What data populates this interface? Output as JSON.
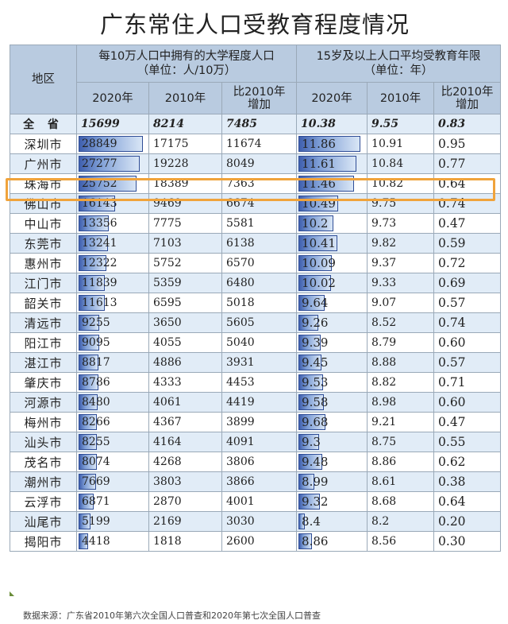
{
  "title": "广东常住人口受教育程度情况",
  "header": {
    "region": "地区",
    "group1_line1": "每10万人口中拥有的大学程度人口",
    "group1_line2": "（单位：人/10万）",
    "group2_line1": "15岁及以上人口平均受教育年限",
    "group2_line2": "（单位：年）",
    "col_2020": "2020年",
    "col_2010": "2010年",
    "col_inc_line1": "比2010年",
    "col_inc_line2": "增加"
  },
  "source": "数据来源：广东省2010年第六次全国人口普查和2020年第七次全国人口普查",
  "highlight_region": "珠海市",
  "colors": {
    "bar": "#3f5fae",
    "header": "#b9cbe0",
    "row_alt": "#e1ecf7",
    "highlight": "#f0a33b"
  },
  "chart_data": {
    "type": "table",
    "title": "广东常住人口受教育程度情况",
    "columns": [
      "地区",
      "每10万人口中拥有的大学程度人口 2020年",
      "2010年",
      "比2010年增加",
      "15岁及以上人口平均受教育年限 2020年",
      "2010年",
      "比2010年增加"
    ],
    "total": {
      "region": "全 省",
      "u2020": "15699",
      "u2010": "8214",
      "uinc": "7485",
      "y2020": "10.38",
      "y2010": "9.55",
      "yinc": "0.83"
    },
    "rows": [
      {
        "region": "深圳市",
        "u2020": "28849",
        "u2010": "17175",
        "uinc": "11674",
        "y2020": "11.86",
        "y2010": "10.91",
        "yinc": "0.95"
      },
      {
        "region": "广州市",
        "u2020": "27277",
        "u2010": "19228",
        "uinc": "8049",
        "y2020": "11.61",
        "y2010": "10.84",
        "yinc": "0.77"
      },
      {
        "region": "珠海市",
        "u2020": "25752",
        "u2010": "18389",
        "uinc": "7363",
        "y2020": "11.46",
        "y2010": "10.82",
        "yinc": "0.64"
      },
      {
        "region": "佛山市",
        "u2020": "16143",
        "u2010": "9469",
        "uinc": "6674",
        "y2020": "10.49",
        "y2010": "9.75",
        "yinc": "0.74"
      },
      {
        "region": "中山市",
        "u2020": "13356",
        "u2010": "7775",
        "uinc": "5581",
        "y2020": "10.2",
        "y2010": "9.73",
        "yinc": "0.47"
      },
      {
        "region": "东莞市",
        "u2020": "13241",
        "u2010": "7103",
        "uinc": "6138",
        "y2020": "10.41",
        "y2010": "9.82",
        "yinc": "0.59"
      },
      {
        "region": "惠州市",
        "u2020": "12322",
        "u2010": "5752",
        "uinc": "6570",
        "y2020": "10.09",
        "y2010": "9.37",
        "yinc": "0.72"
      },
      {
        "region": "江门市",
        "u2020": "11839",
        "u2010": "5359",
        "uinc": "6480",
        "y2020": "10.02",
        "y2010": "9.33",
        "yinc": "0.69"
      },
      {
        "region": "韶关市",
        "u2020": "11613",
        "u2010": "6595",
        "uinc": "5018",
        "y2020": "9.64",
        "y2010": "9.07",
        "yinc": "0.57"
      },
      {
        "region": "清远市",
        "u2020": "9255",
        "u2010": "3650",
        "uinc": "5605",
        "y2020": "9.26",
        "y2010": "8.52",
        "yinc": "0.74"
      },
      {
        "region": "阳江市",
        "u2020": "9095",
        "u2010": "4055",
        "uinc": "5040",
        "y2020": "9.39",
        "y2010": "8.79",
        "yinc": "0.60"
      },
      {
        "region": "湛江市",
        "u2020": "8817",
        "u2010": "4886",
        "uinc": "3931",
        "y2020": "9.45",
        "y2010": "8.88",
        "yinc": "0.57"
      },
      {
        "region": "肇庆市",
        "u2020": "8786",
        "u2010": "4333",
        "uinc": "4453",
        "y2020": "9.53",
        "y2010": "8.82",
        "yinc": "0.71"
      },
      {
        "region": "河源市",
        "u2020": "8480",
        "u2010": "4061",
        "uinc": "4419",
        "y2020": "9.58",
        "y2010": "8.98",
        "yinc": "0.60"
      },
      {
        "region": "梅州市",
        "u2020": "8266",
        "u2010": "4367",
        "uinc": "3899",
        "y2020": "9.68",
        "y2010": "9.21",
        "yinc": "0.47"
      },
      {
        "region": "汕头市",
        "u2020": "8255",
        "u2010": "4164",
        "uinc": "4091",
        "y2020": "9.3",
        "y2010": "8.75",
        "yinc": "0.55"
      },
      {
        "region": "茂名市",
        "u2020": "8074",
        "u2010": "4268",
        "uinc": "3806",
        "y2020": "9.48",
        "y2010": "8.86",
        "yinc": "0.62"
      },
      {
        "region": "潮州市",
        "u2020": "7669",
        "u2010": "3803",
        "uinc": "3866",
        "y2020": "8.99",
        "y2010": "8.61",
        "yinc": "0.38"
      },
      {
        "region": "云浮市",
        "u2020": "6871",
        "u2010": "2870",
        "uinc": "4001",
        "y2020": "9.32",
        "y2010": "8.68",
        "yinc": "0.64"
      },
      {
        "region": "汕尾市",
        "u2020": "5199",
        "u2010": "2169",
        "uinc": "3030",
        "y2020": "8.4",
        "y2010": "8.2",
        "yinc": "0.20"
      },
      {
        "region": "揭阳市",
        "u2020": "4418",
        "u2010": "1818",
        "uinc": "2600",
        "y2020": "8.86",
        "y2010": "8.56",
        "yinc": "0.30"
      }
    ]
  }
}
